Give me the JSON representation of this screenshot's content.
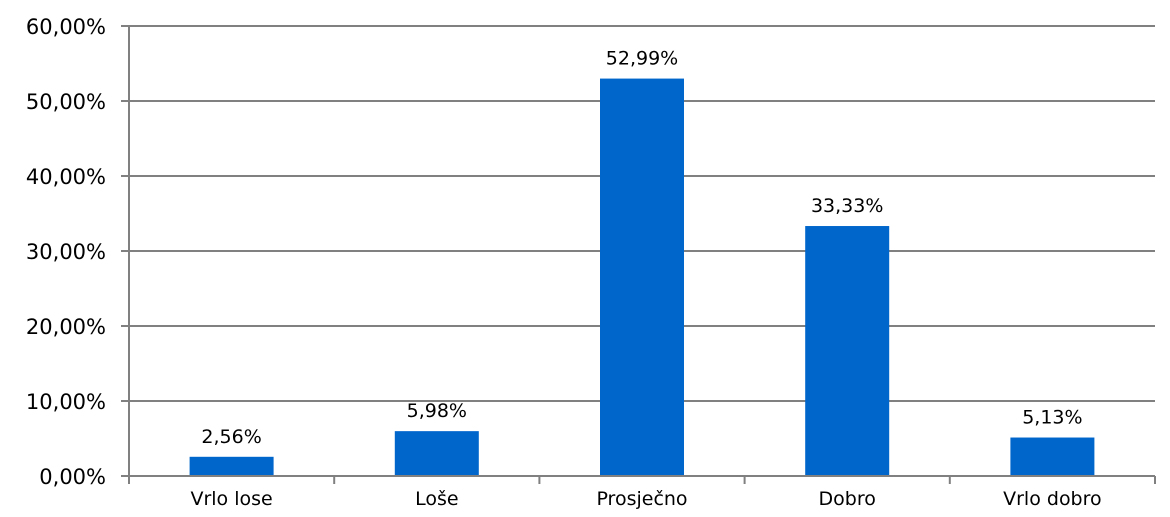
{
  "chart_data": {
    "type": "bar",
    "title": "",
    "xlabel": "",
    "ylabel": "",
    "categories": [
      "Vrlo lose",
      "Loše",
      "Prosječno",
      "Dobro",
      "Vrlo dobro"
    ],
    "values": [
      2.56,
      5.98,
      52.99,
      33.33,
      5.13
    ],
    "data_labels": [
      "2,56%",
      "5,98%",
      "52,99%",
      "33,33%",
      "5,13%"
    ],
    "yticks": [
      {
        "value": 0,
        "label": "0,00%"
      },
      {
        "value": 10,
        "label": "10,00%"
      },
      {
        "value": 20,
        "label": "20,00%"
      },
      {
        "value": 30,
        "label": "30,00%"
      },
      {
        "value": 40,
        "label": "40,00%"
      },
      {
        "value": 50,
        "label": "50,00%"
      },
      {
        "value": 60,
        "label": "60,00%"
      }
    ],
    "ylim": [
      0,
      60
    ],
    "grid": true,
    "legend": "none",
    "colors": {
      "bar": "#0066CC",
      "grid": "#808080",
      "axis": "#808080",
      "text": "#000000"
    }
  }
}
